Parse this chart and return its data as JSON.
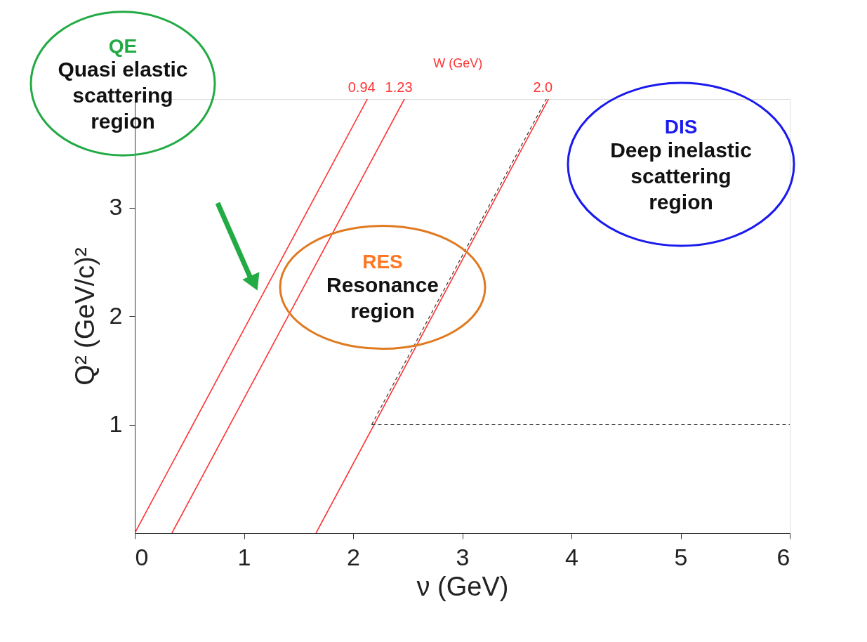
{
  "chart_data": {
    "type": "line",
    "xlabel": "ν (GeV)",
    "ylabel": "Q² (GeV/c)²",
    "xlim": [
      0,
      6
    ],
    "ylim": [
      0,
      4
    ],
    "xticks": [
      0,
      1,
      2,
      3,
      4,
      5,
      6
    ],
    "yticks": [
      1,
      2,
      3
    ],
    "grid": false,
    "marker": "none",
    "legend_title": "W (GeV)",
    "series": [
      {
        "name": "0.94",
        "color": "#ff3333",
        "x": [
          0,
          2.13
        ],
        "values": [
          0,
          4
        ],
        "line_style": "solid"
      },
      {
        "name": "1.23",
        "color": "#ff3333",
        "x": [
          0.34,
          2.47
        ],
        "values": [
          0,
          4
        ],
        "line_style": "solid"
      },
      {
        "name": "2.0",
        "color": "#ff3333",
        "x": [
          1.66,
          3.79
        ],
        "values": [
          0,
          4
        ],
        "line_style": "solid"
      },
      {
        "color": "#333333",
        "x": [
          2.17,
          3.77
        ],
        "values": [
          1,
          4
        ],
        "line_style": "dashed"
      },
      {
        "color": "#333333",
        "x": [
          2.17,
          6
        ],
        "values": [
          1,
          1
        ],
        "line_style": "dashed"
      }
    ],
    "annotations": [
      "QE",
      "Quasi elastic scattering region",
      "RES",
      "Resonance region",
      "DIS",
      "Deep inelastic scattering region"
    ]
  }
}
